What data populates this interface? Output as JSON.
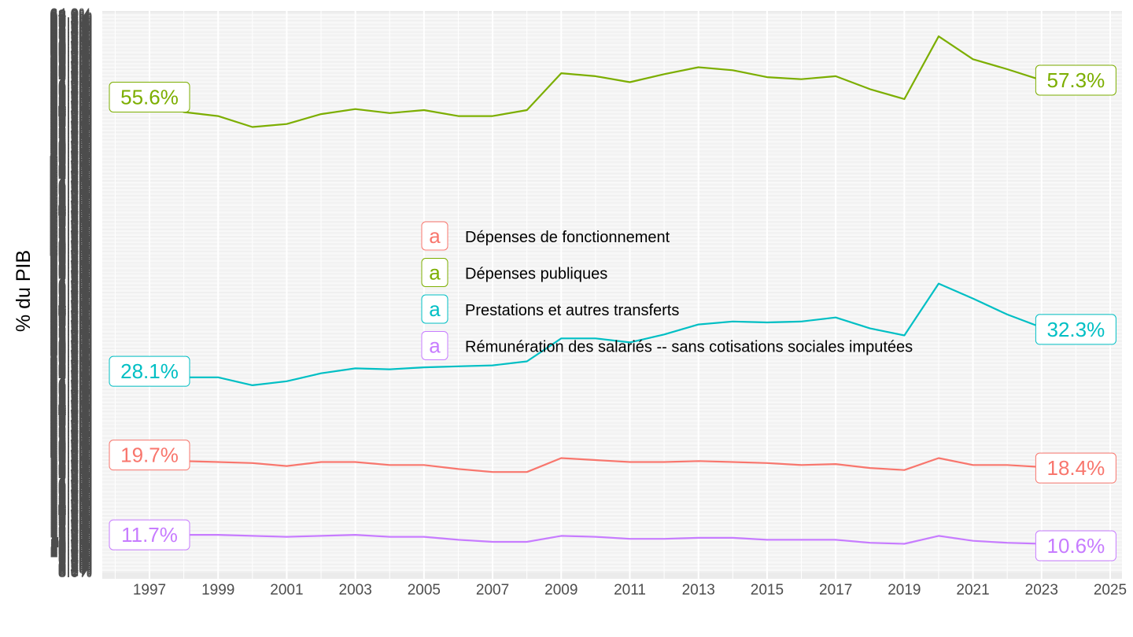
{
  "chart_data": {
    "type": "line",
    "title": "",
    "xlabel": "",
    "ylabel": "% du PIB",
    "x_ticks": [
      "1997",
      "1999",
      "2001",
      "2003",
      "2005",
      "2007",
      "2009",
      "2011",
      "2013",
      "2015",
      "2017",
      "2019",
      "2021",
      "2023",
      "2025"
    ],
    "xlim": [
      1995.6,
      2025.3
    ],
    "ylim": [
      8.0,
      64.0
    ],
    "y_tick_step": 0.1,
    "y_tick_format": "percent-1dp",
    "grid": true,
    "legend_position": "center",
    "legend_key_glyph": "a",
    "x": [
      1997,
      1998,
      1999,
      2000,
      2001,
      2002,
      2003,
      2004,
      2005,
      2006,
      2007,
      2008,
      2009,
      2010,
      2011,
      2012,
      2013,
      2014,
      2015,
      2016,
      2017,
      2018,
      2019,
      2020,
      2021,
      2022,
      2023,
      2024
    ],
    "series": [
      {
        "name": "Dépenses de fonctionnement",
        "color": "#F8766D",
        "values": [
          19.7,
          19.1,
          19.0,
          18.9,
          18.6,
          19.0,
          19.0,
          18.7,
          18.7,
          18.3,
          18.0,
          18.0,
          19.4,
          19.2,
          19.0,
          19.0,
          19.1,
          19.0,
          18.9,
          18.7,
          18.8,
          18.4,
          18.2,
          19.4,
          18.7,
          18.7,
          18.5,
          18.4
        ],
        "start_label": "19.7%",
        "end_label": "18.4%"
      },
      {
        "name": "Dépenses publiques",
        "color": "#7CAE00",
        "values": [
          55.6,
          54.1,
          53.7,
          52.6,
          52.9,
          53.9,
          54.4,
          54.0,
          54.3,
          53.7,
          53.7,
          54.3,
          58.0,
          57.7,
          57.1,
          57.9,
          58.6,
          58.3,
          57.6,
          57.4,
          57.7,
          56.4,
          55.4,
          61.7,
          59.4,
          58.4,
          57.3,
          57.3
        ],
        "start_label": "55.6%",
        "end_label": "57.3%"
      },
      {
        "name": "Prestations et autres transferts",
        "color": "#00BFC4",
        "values": [
          28.1,
          27.5,
          27.5,
          26.7,
          27.1,
          27.9,
          28.4,
          28.3,
          28.5,
          28.6,
          28.7,
          29.1,
          31.4,
          31.4,
          31.0,
          31.8,
          32.8,
          33.1,
          33.0,
          33.1,
          33.5,
          32.4,
          31.7,
          36.9,
          35.4,
          33.8,
          32.5,
          32.3
        ],
        "start_label": "28.1%",
        "end_label": "32.3%"
      },
      {
        "name": "Rémunération des salariés -- sans cotisations sociales imputées",
        "color": "#C77CFF",
        "values": [
          11.7,
          11.7,
          11.7,
          11.6,
          11.5,
          11.6,
          11.7,
          11.5,
          11.5,
          11.2,
          11.0,
          11.0,
          11.6,
          11.5,
          11.3,
          11.3,
          11.4,
          11.4,
          11.2,
          11.2,
          11.2,
          10.9,
          10.8,
          11.6,
          11.1,
          10.9,
          10.8,
          10.6
        ],
        "start_label": "11.7%",
        "end_label": "10.6%"
      }
    ]
  }
}
